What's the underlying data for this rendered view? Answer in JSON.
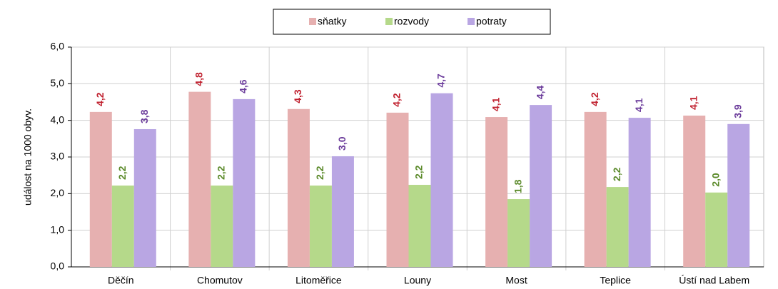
{
  "chart_data": {
    "type": "bar",
    "y_label": "událost na 1000 obyv.",
    "categories": [
      "Děčín",
      "Chomutov",
      "Litoměřice",
      "Louny",
      "Most",
      "Teplice",
      "Ústí nad Labem"
    ],
    "series": [
      {
        "name": "sňatky",
        "color": "#e6b0b0",
        "label_color": "#c0202e",
        "values": [
          4.23,
          4.78,
          4.31,
          4.21,
          4.09,
          4.23,
          4.13
        ],
        "value_labels": [
          "4,2",
          "4,8",
          "4,3",
          "4,2",
          "4,1",
          "4,2",
          "4,1"
        ]
      },
      {
        "name": "rozvody",
        "color": "#b5d98a",
        "label_color": "#5b8a2a",
        "values": [
          2.22,
          2.22,
          2.22,
          2.24,
          1.85,
          2.18,
          2.03
        ],
        "value_labels": [
          "2,2",
          "2,2",
          "2,2",
          "2,2",
          "1,8",
          "2,2",
          "2,0"
        ]
      },
      {
        "name": "potraty",
        "color": "#b9a6e3",
        "label_color": "#6a3a9a",
        "values": [
          3.76,
          4.58,
          3.02,
          4.74,
          4.42,
          4.07,
          3.9
        ],
        "value_labels": [
          "3,8",
          "4,6",
          "3,0",
          "4,7",
          "4,4",
          "4,1",
          "3,9"
        ]
      }
    ],
    "ylim": [
      0,
      6
    ],
    "yticks": [
      {
        "value": 0,
        "label": "0,0"
      },
      {
        "value": 1,
        "label": "1,0"
      },
      {
        "value": 2,
        "label": "2,0"
      },
      {
        "value": 3,
        "label": "3,0"
      },
      {
        "value": 4,
        "label": "4,0"
      },
      {
        "value": 5,
        "label": "5,0"
      },
      {
        "value": 6,
        "label": "6,0"
      }
    ],
    "grid": true,
    "legend": "top"
  }
}
